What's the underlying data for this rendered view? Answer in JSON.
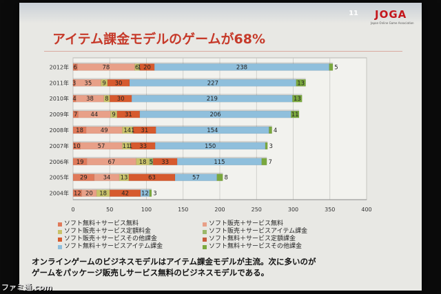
{
  "slide": {
    "page_number": "11",
    "logo_text": "JOGA",
    "logo_sub": "Japan Online Game Association",
    "title": "アイテム課金モデルのゲームが68%",
    "caption_line1": "オンラインゲームのビジネスモデルはアイテム課金モデルが主流。次に多いのが",
    "caption_line2": "ゲームをパッケージ販売しサービス無料のビジネスモデルである。"
  },
  "watermark": "ファミ通.com",
  "chart_data": {
    "type": "bar",
    "orientation": "horizontal",
    "stacked": true,
    "categories": [
      "2012年",
      "2011年",
      "2010年",
      "2009年",
      "2008年",
      "2007年",
      "2006年",
      "2005年",
      "2004年"
    ],
    "series": [
      {
        "name": "ソフト無料＋サービス無料",
        "color": "#e07a5a",
        "values": [
          6,
          3,
          4,
          7,
          18,
          10,
          19,
          29,
          12
        ]
      },
      {
        "name": "ソフト販売＋サービス無料",
        "color": "#e8a088",
        "values": [
          78,
          35,
          38,
          44,
          49,
          57,
          67,
          34,
          20
        ]
      },
      {
        "name": "ソフト販売＋サービス定額料金",
        "color": "#c9c26a",
        "values": [
          6,
          9,
          8,
          9,
          14,
          11,
          18,
          13,
          18
        ]
      },
      {
        "name": "ソフト販売＋サービスアイテム課金",
        "color": "#9bb86a",
        "values": [
          1,
          0,
          0,
          0,
          1,
          1,
          5,
          0,
          0
        ]
      },
      {
        "name": "ソフト販売＋サービスその他課金",
        "color": "#d65a2e",
        "values": [
          20,
          30,
          30,
          31,
          31,
          33,
          33,
          63,
          42
        ]
      },
      {
        "name": "ソフト無料＋サービス定額課金",
        "color": "#c85a3c",
        "values": [
          0,
          0,
          0,
          0,
          0,
          0,
          0,
          0,
          0
        ]
      },
      {
        "name": "ソフト無料＋サービスアイテム課金",
        "color": "#8fbfdc",
        "values": [
          238,
          227,
          219,
          206,
          154,
          150,
          115,
          57,
          12
        ]
      },
      {
        "name": "ソフト無料＋サービスその他課金",
        "color": "#7aa83e",
        "values": [
          5,
          13,
          13,
          11,
          4,
          3,
          7,
          8,
          3
        ]
      }
    ],
    "data_labels": [
      [
        "6",
        "78",
        "6",
        "1",
        "20",
        "238",
        "5"
      ],
      [
        "3",
        "35",
        "9",
        "30",
        "227",
        "13"
      ],
      [
        "4",
        "38",
        "8",
        "30",
        "219",
        "13"
      ],
      [
        "7",
        "44",
        "9",
        "31",
        "206",
        "11"
      ],
      [
        "18",
        "49",
        "14",
        "1",
        "31",
        "154",
        "4"
      ],
      [
        "10",
        "57",
        "11",
        "1",
        "33",
        "150",
        "3"
      ],
      [
        "19",
        "67",
        "18",
        "5",
        "33",
        "115",
        "7"
      ],
      [
        "29",
        "34",
        "13",
        "63",
        "57",
        "8"
      ],
      [
        "12",
        "20",
        "18",
        "42",
        "12",
        "3"
      ]
    ],
    "xlim": [
      0,
      400
    ],
    "xticks": [
      "0",
      "50",
      "100",
      "150",
      "200",
      "250",
      "300",
      "350",
      "400"
    ],
    "grid": true,
    "legend_position": "bottom"
  }
}
